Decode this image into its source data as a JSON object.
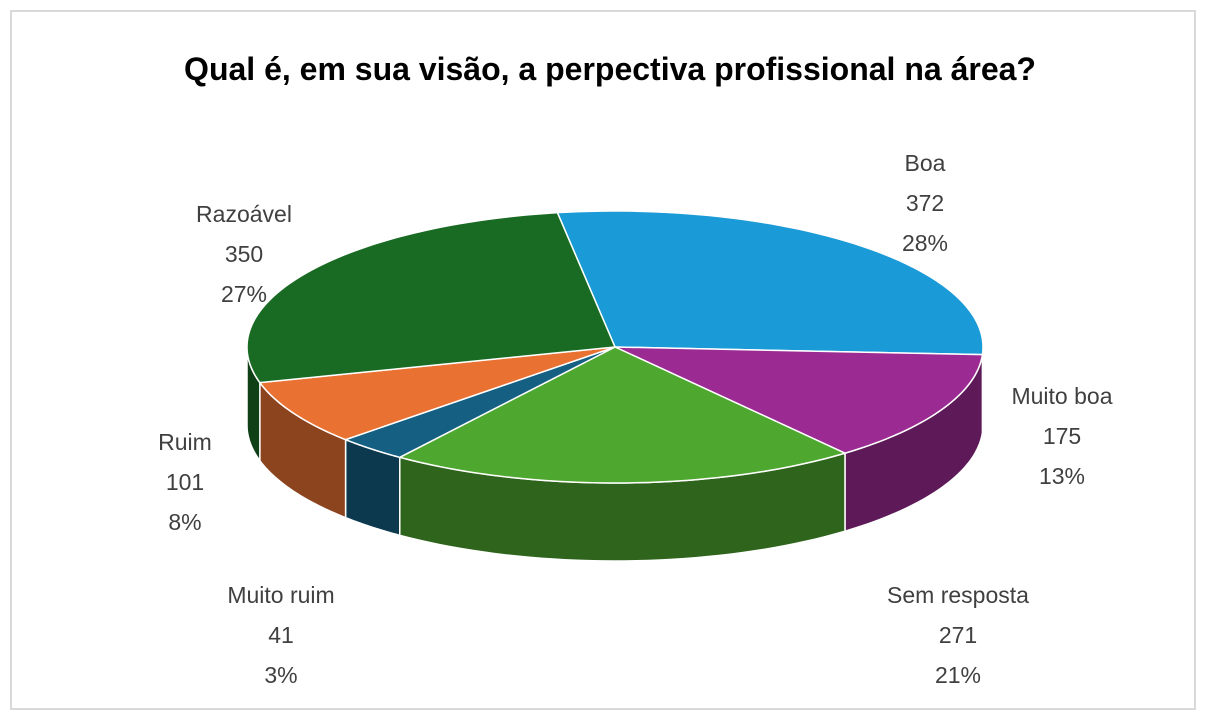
{
  "chart_data": {
    "type": "pie",
    "title": "Qual é, em sua visão, a perpectiva profissional na área?",
    "categories": [
      "Boa",
      "Muito boa",
      "Sem resposta",
      "Muito ruim",
      "Ruim",
      "Razoável"
    ],
    "values": [
      372,
      175,
      271,
      41,
      101,
      350
    ],
    "percent_labels": [
      "28%",
      "13%",
      "21%",
      "3%",
      "8%",
      "27%"
    ],
    "colors": [
      "#1a9ad6",
      "#9b2a93",
      "#4ea72e",
      "#155f82",
      "#e97132",
      "#196b24"
    ]
  }
}
